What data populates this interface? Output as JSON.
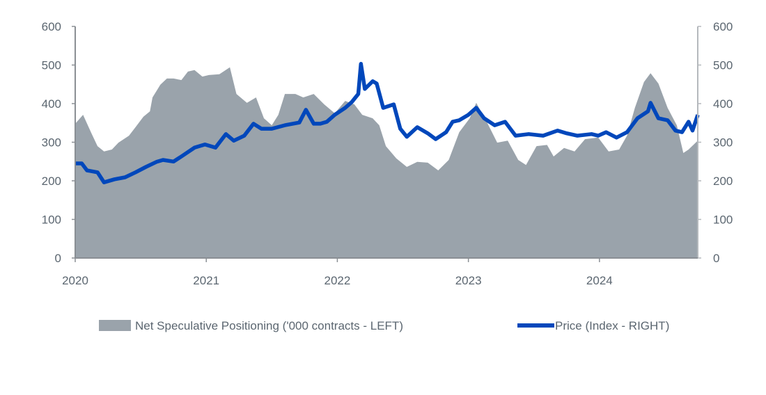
{
  "chart_data": {
    "type": "area+line",
    "title": "",
    "xlabel": "",
    "ylabel_left": "",
    "ylabel_right": "",
    "x_ticks": [
      "2020",
      "2021",
      "2022",
      "2023",
      "2024"
    ],
    "xlim": [
      2020,
      2024.75
    ],
    "y_left": {
      "lim": [
        0,
        600
      ],
      "ticks": [
        "0",
        "100",
        "200",
        "300",
        "400",
        "500",
        "600"
      ]
    },
    "y_right": {
      "lim": [
        0,
        600
      ],
      "ticks": [
        "0",
        "100",
        "200",
        "300",
        "400",
        "500",
        "600"
      ]
    },
    "grid": false,
    "legend_position": "bottom",
    "series": [
      {
        "name": "Net Speculative Positioning ('000 contracts - LEFT)",
        "type": "area",
        "axis": "left",
        "color": "#9aa3ab",
        "x": [
          2020.0,
          2020.06,
          2020.12,
          2020.17,
          2020.22,
          2020.28,
          2020.33,
          2020.41,
          2020.46,
          2020.52,
          2020.57,
          2020.59,
          2020.65,
          2020.7,
          2020.75,
          2020.81,
          2020.86,
          2020.91,
          2020.97,
          2021.02,
          2021.1,
          2021.18,
          2021.23,
          2021.31,
          2021.38,
          2021.44,
          2021.5,
          2021.55,
          2021.6,
          2021.68,
          2021.74,
          2021.82,
          2021.9,
          2021.98,
          2022.06,
          2022.13,
          2022.19,
          2022.27,
          2022.32,
          2022.37,
          2022.45,
          2022.53,
          2022.61,
          2022.69,
          2022.77,
          2022.85,
          2022.93,
          2023.01,
          2023.06,
          2023.14,
          2023.22,
          2023.3,
          2023.38,
          2023.44,
          2023.52,
          2023.6,
          2023.65,
          2023.73,
          2023.81,
          2023.89,
          2023.99,
          2024.07,
          2024.15,
          2024.21,
          2024.27,
          2024.34,
          2024.39,
          2024.45,
          2024.52,
          2024.59,
          2024.64,
          2024.68,
          2024.75
        ],
        "values": [
          348,
          371,
          326,
          290,
          276,
          281,
          299,
          317,
          339,
          366,
          380,
          416,
          449,
          465,
          465,
          461,
          483,
          487,
          470,
          474,
          476,
          494,
          425,
          402,
          416,
          362,
          344,
          371,
          425,
          425,
          416,
          425,
          398,
          375,
          407,
          398,
          371,
          362,
          344,
          290,
          258,
          236,
          249,
          247,
          227,
          254,
          326,
          362,
          402,
          353,
          299,
          304,
          254,
          241,
          290,
          293,
          263,
          285,
          276,
          308,
          312,
          276,
          281,
          317,
          389,
          456,
          479,
          452,
          389,
          344,
          272,
          281,
          304
        ]
      },
      {
        "name": "Price (Index - RIGHT)",
        "type": "line",
        "axis": "right",
        "color": "#0047bb",
        "x": [
          2020.0,
          2020.05,
          2020.09,
          2020.17,
          2020.22,
          2020.3,
          2020.38,
          2020.46,
          2020.54,
          2020.62,
          2020.67,
          2020.75,
          2020.81,
          2020.91,
          2020.99,
          2021.07,
          2021.15,
          2021.21,
          2021.29,
          2021.36,
          2021.42,
          2021.5,
          2021.6,
          2021.71,
          2021.76,
          2021.82,
          2021.87,
          2021.92,
          2021.98,
          2022.06,
          2022.11,
          2022.16,
          2022.18,
          2022.21,
          2022.27,
          2022.3,
          2022.35,
          2022.43,
          2022.48,
          2022.53,
          2022.61,
          2022.69,
          2022.75,
          2022.83,
          2022.88,
          2022.93,
          2023.0,
          2023.06,
          2023.12,
          2023.2,
          2023.28,
          2023.36,
          2023.46,
          2023.57,
          2023.68,
          2023.75,
          2023.83,
          2023.94,
          2023.99,
          2024.05,
          2024.13,
          2024.21,
          2024.29,
          2024.37,
          2024.39,
          2024.45,
          2024.52,
          2024.58,
          2024.63,
          2024.68,
          2024.71,
          2024.75
        ],
        "values": [
          245,
          245,
          227,
          222,
          196,
          204,
          209,
          222,
          236,
          249,
          254,
          250,
          263,
          286,
          294,
          286,
          321,
          304,
          317,
          348,
          335,
          335,
          344,
          351,
          384,
          348,
          348,
          353,
          371,
          389,
          404,
          425,
          503,
          438,
          458,
          452,
          389,
          398,
          335,
          314,
          339,
          323,
          308,
          326,
          353,
          357,
          371,
          389,
          362,
          344,
          353,
          317,
          321,
          317,
          330,
          323,
          317,
          321,
          317,
          326,
          312,
          326,
          362,
          380,
          402,
          362,
          357,
          330,
          326,
          353,
          330,
          371
        ]
      }
    ]
  }
}
